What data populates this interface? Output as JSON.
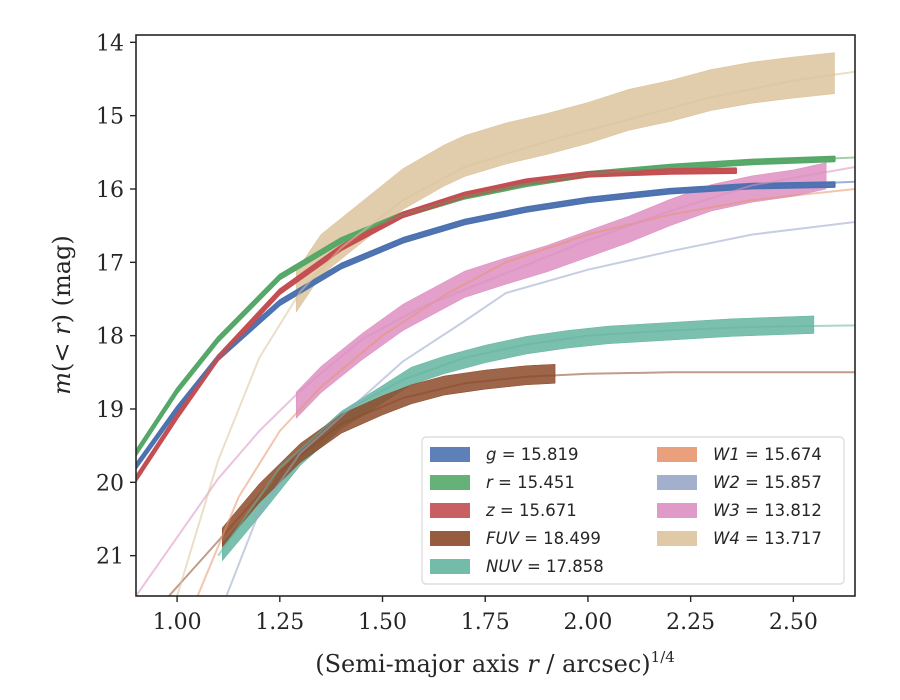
{
  "chart_data": {
    "type": "line",
    "title": "",
    "xlabel": "(Semi-major axis r / arcsec)",
    "xlabel_parts": {
      "prefix": "(Semi-major axis ",
      "var": "r",
      "suffix": " / arcsec)",
      "exponent": "1/4"
    },
    "ylabel": "m(< r) (mag)",
    "ylabel_parts": {
      "m": "m",
      "open": "(",
      "lt": "< ",
      "r": "r",
      "close": ")",
      "unit": " (mag)"
    },
    "xlim": [
      0.9,
      2.65
    ],
    "ylim": [
      21.55,
      13.9
    ],
    "y_inverted": true,
    "xticks": [
      1.0,
      1.25,
      1.5,
      1.75,
      2.0,
      2.25,
      2.5
    ],
    "xtick_labels": [
      "1.00",
      "1.25",
      "1.50",
      "1.75",
      "2.00",
      "2.25",
      "2.50"
    ],
    "yticks": [
      14,
      15,
      16,
      17,
      18,
      19,
      20,
      21
    ],
    "ytick_labels": [
      "14",
      "15",
      "16",
      "17",
      "18",
      "19",
      "20",
      "21"
    ],
    "grid": false,
    "legend_position": "lower-right",
    "series": [
      {
        "name": "g",
        "legend": "g = 15.819",
        "color": "#4c72b0",
        "model": {
          "x": [
            0.9,
            1.0,
            1.1,
            1.25,
            1.4,
            1.55,
            1.7,
            1.85,
            2.0,
            2.2,
            2.4,
            2.65
          ],
          "y": [
            19.8,
            19.0,
            18.3,
            17.55,
            17.05,
            16.7,
            16.45,
            16.28,
            16.15,
            16.03,
            15.96,
            15.9
          ]
        },
        "band": {
          "x": [
            0.9,
            1.0,
            1.1,
            1.25,
            1.4,
            1.55,
            1.7,
            1.85,
            2.0,
            2.2,
            2.4,
            2.6
          ],
          "y": [
            19.78,
            19.0,
            18.3,
            17.55,
            17.05,
            16.7,
            16.45,
            16.28,
            16.15,
            16.03,
            15.96,
            15.94
          ],
          "halfwidth": 0.03
        }
      },
      {
        "name": "r",
        "legend": "r = 15.451",
        "color": "#55a868",
        "model": {
          "x": [
            0.9,
            1.0,
            1.1,
            1.25,
            1.4,
            1.55,
            1.7,
            1.85,
            2.0,
            2.2,
            2.4,
            2.65
          ],
          "y": [
            19.6,
            18.75,
            18.05,
            17.2,
            16.7,
            16.35,
            16.1,
            15.93,
            15.8,
            15.7,
            15.63,
            15.57
          ]
        },
        "band": {
          "x": [
            0.9,
            1.0,
            1.1,
            1.25,
            1.4,
            1.55,
            1.7,
            1.85,
            2.0,
            2.2,
            2.4,
            2.6
          ],
          "y": [
            19.6,
            18.75,
            18.05,
            17.2,
            16.7,
            16.35,
            16.1,
            15.93,
            15.8,
            15.7,
            15.63,
            15.59
          ],
          "halfwidth": 0.03
        }
      },
      {
        "name": "z",
        "legend": "z = 15.671",
        "color": "#c44e52",
        "model": {
          "x": [
            0.9,
            1.0,
            1.1,
            1.25,
            1.4,
            1.55,
            1.7,
            1.85,
            2.0,
            2.2,
            2.35
          ],
          "y": [
            19.95,
            19.1,
            18.3,
            17.4,
            16.8,
            16.35,
            16.08,
            15.9,
            15.8,
            15.76,
            15.75
          ]
        },
        "band": {
          "x": [
            0.9,
            1.0,
            1.1,
            1.25,
            1.4,
            1.55,
            1.7,
            1.85,
            2.0,
            2.2,
            2.36
          ],
          "y": [
            19.95,
            19.1,
            18.3,
            17.4,
            16.8,
            16.35,
            16.08,
            15.9,
            15.8,
            15.76,
            15.75
          ],
          "halfwidth": 0.03
        }
      },
      {
        "name": "FUV",
        "legend": "FUV = 18.499",
        "color": "#8c4a2a",
        "model": {
          "x": [
            0.98,
            1.1,
            1.25,
            1.4,
            1.55,
            1.7,
            1.85,
            2.0,
            2.2,
            2.4,
            2.65
          ],
          "y": [
            21.55,
            20.8,
            19.85,
            19.2,
            18.85,
            18.65,
            18.56,
            18.52,
            18.5,
            18.5,
            18.5
          ]
        },
        "band": {
          "x": [
            1.11,
            1.2,
            1.3,
            1.4,
            1.5,
            1.57,
            1.65,
            1.75,
            1.85,
            1.92
          ],
          "y": [
            20.75,
            20.15,
            19.6,
            19.2,
            18.95,
            18.8,
            18.68,
            18.6,
            18.54,
            18.52
          ],
          "halfwidth": 0.13
        }
      },
      {
        "name": "NUV",
        "legend": "NUV = 17.858",
        "color": "#64b5a0",
        "model": {
          "x": [
            1.1,
            1.25,
            1.4,
            1.55,
            1.7,
            1.85,
            2.0,
            2.2,
            2.4,
            2.65
          ],
          "y": [
            21.0,
            19.8,
            19.05,
            18.6,
            18.3,
            18.12,
            18.0,
            17.93,
            17.88,
            17.86
          ]
        },
        "band": {
          "x": [
            1.11,
            1.2,
            1.3,
            1.4,
            1.5,
            1.57,
            1.65,
            1.75,
            1.85,
            1.95,
            2.05,
            2.2,
            2.35,
            2.45,
            2.55
          ],
          "y": [
            20.95,
            20.35,
            19.65,
            19.15,
            18.8,
            18.55,
            18.4,
            18.25,
            18.13,
            18.05,
            17.99,
            17.94,
            17.89,
            17.87,
            17.85
          ],
          "halfwidth": 0.12
        }
      },
      {
        "name": "W1",
        "legend": "W1 = 15.674",
        "color": "#e8966e",
        "model": {
          "x": [
            1.05,
            1.15,
            1.25,
            1.35,
            1.5,
            1.65,
            1.8,
            2.0,
            2.2,
            2.4,
            2.65
          ],
          "y": [
            21.55,
            20.2,
            19.3,
            18.7,
            18.0,
            17.45,
            17.0,
            16.62,
            16.35,
            16.15,
            16.0
          ]
        }
      },
      {
        "name": "W2",
        "legend": "W2 = 15.857",
        "color": "#98a6c8",
        "model": {
          "x": [
            1.12,
            1.2,
            1.3,
            1.4,
            1.55,
            1.7,
            1.8,
            2.0,
            2.2,
            2.4,
            2.65
          ],
          "y": [
            21.55,
            20.4,
            19.6,
            19.1,
            18.35,
            17.8,
            17.42,
            17.1,
            16.85,
            16.62,
            16.45
          ]
        }
      },
      {
        "name": "W3",
        "legend": "W3 = 13.812",
        "color": "#dd8fc2",
        "model": {
          "x": [
            0.9,
            1.0,
            1.1,
            1.2,
            1.3,
            1.45,
            1.6,
            1.8,
            2.0,
            2.2,
            2.4,
            2.65
          ],
          "y": [
            21.55,
            20.75,
            19.95,
            19.3,
            18.75,
            18.05,
            17.6,
            17.15,
            16.7,
            16.3,
            15.95,
            15.7
          ]
        },
        "band": {
          "x": [
            1.29,
            1.35,
            1.45,
            1.55,
            1.65,
            1.7,
            1.8,
            1.9,
            2.0,
            2.1,
            2.2,
            2.3,
            2.4,
            2.5,
            2.58
          ],
          "y": [
            18.95,
            18.6,
            18.15,
            17.75,
            17.45,
            17.3,
            17.12,
            16.95,
            16.75,
            16.55,
            16.32,
            16.12,
            16.0,
            15.92,
            15.82
          ],
          "halfwidth": 0.18
        }
      },
      {
        "name": "W4",
        "legend": "W4 = 13.717",
        "color": "#dcc39c",
        "model": {
          "x": [
            1.0,
            1.1,
            1.2,
            1.3,
            1.4,
            1.55,
            1.7,
            1.9,
            2.1,
            2.3,
            2.5,
            2.65
          ],
          "y": [
            21.55,
            19.7,
            18.3,
            17.4,
            16.8,
            16.15,
            15.7,
            15.35,
            15.05,
            14.75,
            14.52,
            14.4
          ]
        },
        "band": {
          "x": [
            1.29,
            1.35,
            1.45,
            1.55,
            1.65,
            1.7,
            1.8,
            1.9,
            2.0,
            2.1,
            2.2,
            2.3,
            2.4,
            2.5,
            2.6
          ],
          "y": [
            17.4,
            16.9,
            16.45,
            16.0,
            15.68,
            15.55,
            15.38,
            15.25,
            15.1,
            14.92,
            14.8,
            14.65,
            14.55,
            14.48,
            14.42
          ],
          "halfwidth": 0.28
        }
      }
    ],
    "legend_columns": [
      [
        "g",
        "r",
        "z",
        "FUV",
        "NUV"
      ],
      [
        "W1",
        "W2",
        "W3",
        "W4"
      ]
    ]
  }
}
